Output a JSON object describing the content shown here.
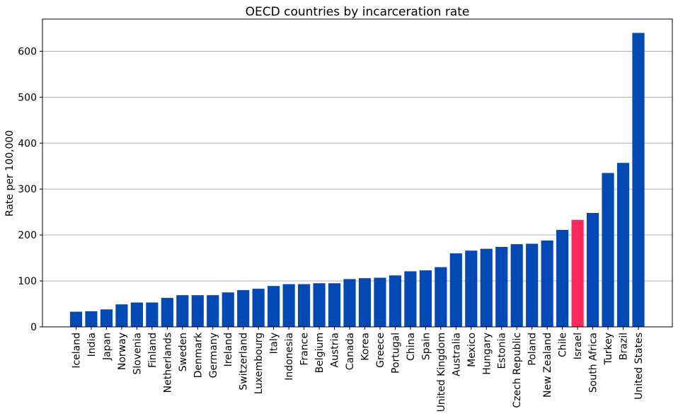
{
  "chart_data": {
    "type": "bar",
    "title": "OECD countries by incarceration rate",
    "xlabel": "",
    "ylabel": "Rate per 100,000",
    "ylim": [
      0,
      670
    ],
    "yticks": [
      0,
      100,
      200,
      300,
      400,
      500,
      600
    ],
    "grid": "horizontal",
    "categories": [
      "Iceland",
      "India",
      "Japan",
      "Norway",
      "Slovenia",
      "Finland",
      "Netherlands",
      "Sweden",
      "Denmark",
      "Germany",
      "Ireland",
      "Switzerland",
      "Luxembourg",
      "Italy",
      "Indonesia",
      "France",
      "Belgium",
      "Austria",
      "Canada",
      "Korea",
      "Greece",
      "Portugal",
      "China",
      "Spain",
      "United Kingdom",
      "Australia",
      "Mexico",
      "Hungary",
      "Estonia",
      "Czech Republic",
      "Poland",
      "New Zealand",
      "Chile",
      "Israel",
      "South Africa",
      "Turkey",
      "Brazil",
      "United States"
    ],
    "values": [
      33,
      34,
      38,
      49,
      53,
      53,
      63,
      69,
      69,
      69,
      75,
      80,
      83,
      89,
      93,
      93,
      95,
      95,
      104,
      106,
      107,
      112,
      121,
      123,
      130,
      160,
      166,
      170,
      174,
      180,
      181,
      188,
      211,
      233,
      248,
      335,
      357,
      640
    ],
    "colors": {
      "default": "#0349b4",
      "highlight": "#fa2a5e",
      "highlight_category": "Israel"
    }
  }
}
